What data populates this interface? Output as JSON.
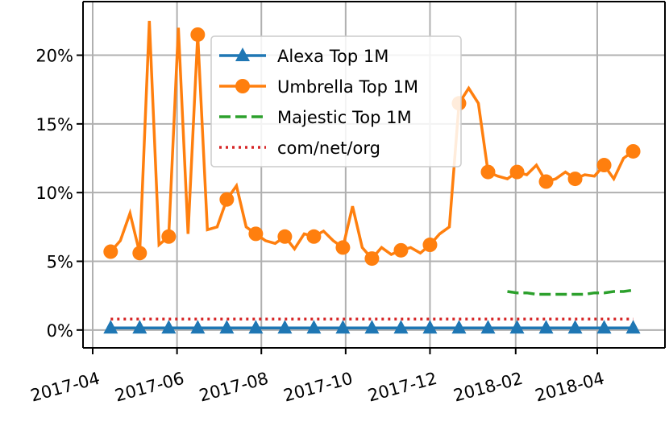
{
  "chart_data": {
    "type": "line",
    "x": [
      "2017-04-14",
      "2017-04-21",
      "2017-04-28",
      "2017-05-05",
      "2017-05-12",
      "2017-05-19",
      "2017-05-26",
      "2017-06-02",
      "2017-06-09",
      "2017-06-16",
      "2017-06-23",
      "2017-06-30",
      "2017-07-07",
      "2017-07-14",
      "2017-07-21",
      "2017-07-28",
      "2017-08-04",
      "2017-08-11",
      "2017-08-18",
      "2017-08-25",
      "2017-09-01",
      "2017-09-08",
      "2017-09-15",
      "2017-09-22",
      "2017-09-29",
      "2017-10-06",
      "2017-10-13",
      "2017-10-20",
      "2017-10-27",
      "2017-11-03",
      "2017-11-10",
      "2017-11-17",
      "2017-11-24",
      "2017-12-01",
      "2017-12-08",
      "2017-12-15",
      "2017-12-22",
      "2017-12-29",
      "2018-01-05",
      "2018-01-12",
      "2018-01-19",
      "2018-01-26",
      "2018-02-02",
      "2018-02-09",
      "2018-02-16",
      "2018-02-23",
      "2018-03-02",
      "2018-03-09",
      "2018-03-16",
      "2018-03-23",
      "2018-03-30",
      "2018-04-06",
      "2018-04-13",
      "2018-04-20",
      "2018-04-27"
    ],
    "series": [
      {
        "name": "Alexa Top 1M",
        "color": "#1f77b4",
        "linestyle": "solid",
        "marker": "triangle",
        "values": [
          0.15,
          0.15,
          0.15,
          0.15,
          0.15,
          0.15,
          0.15,
          0.15,
          0.15,
          0.15,
          0.15,
          0.15,
          0.15,
          0.15,
          0.15,
          0.15,
          0.15,
          0.15,
          0.15,
          0.15,
          0.15,
          0.15,
          0.15,
          0.15,
          0.15,
          0.15,
          0.15,
          0.15,
          0.15,
          0.15,
          0.15,
          0.15,
          0.15,
          0.15,
          0.15,
          0.15,
          0.15,
          0.15,
          0.15,
          0.15,
          0.15,
          0.15,
          0.15,
          0.15,
          0.15,
          0.15,
          0.15,
          0.15,
          0.15,
          0.15,
          0.15,
          0.15,
          0.15,
          0.15,
          0.15
        ]
      },
      {
        "name": "Umbrella Top 1M",
        "color": "#ff7f0e",
        "linestyle": "solid",
        "marker": "circle",
        "values": [
          5.7,
          6.5,
          8.5,
          5.6,
          22.5,
          6.2,
          6.8,
          22.0,
          7.0,
          21.5,
          7.3,
          7.5,
          9.5,
          10.5,
          7.5,
          7.0,
          6.5,
          6.3,
          6.8,
          5.9,
          7.0,
          6.8,
          7.2,
          6.5,
          6.0,
          9.0,
          6.0,
          5.2,
          6.0,
          5.5,
          5.8,
          6.0,
          5.6,
          6.2,
          7.0,
          7.5,
          16.5,
          17.6,
          16.5,
          11.5,
          11.2,
          11.0,
          11.5,
          11.3,
          12.0,
          10.8,
          11.0,
          11.5,
          11.0,
          11.3,
          11.2,
          12.0,
          11.0,
          12.5,
          13.0
        ]
      },
      {
        "name": "Majestic Top 1M",
        "color": "#2ca02c",
        "linestyle": "dashed",
        "values": [
          null,
          null,
          null,
          null,
          null,
          null,
          null,
          null,
          null,
          null,
          null,
          null,
          null,
          null,
          null,
          null,
          null,
          null,
          null,
          null,
          null,
          null,
          null,
          null,
          null,
          null,
          null,
          null,
          null,
          null,
          null,
          null,
          null,
          null,
          null,
          null,
          null,
          null,
          null,
          null,
          null,
          2.8,
          2.7,
          2.7,
          2.6,
          2.6,
          2.6,
          2.6,
          2.6,
          2.6,
          2.7,
          2.7,
          2.8,
          2.8,
          2.9
        ]
      },
      {
        "name": "com/net/org",
        "color": "#d62728",
        "linestyle": "dotted",
        "values": [
          0.8,
          0.8,
          0.8,
          0.8,
          0.8,
          0.8,
          0.8,
          0.8,
          0.8,
          0.8,
          0.8,
          0.8,
          0.8,
          0.8,
          0.8,
          0.8,
          0.8,
          0.8,
          0.8,
          0.8,
          0.8,
          0.8,
          0.8,
          0.8,
          0.8,
          0.8,
          0.8,
          0.8,
          0.8,
          0.8,
          0.8,
          0.8,
          0.8,
          0.8,
          0.8,
          0.8,
          0.8,
          0.8,
          0.8,
          0.8,
          0.8,
          0.8,
          0.8,
          0.8,
          0.8,
          0.8,
          0.8,
          0.8,
          0.8,
          0.8,
          0.8,
          0.8,
          0.8,
          0.8,
          0.8
        ]
      }
    ],
    "xlim": [
      "2017-03-25",
      "2018-05-20"
    ],
    "xticks": [
      {
        "value": "2017-04-01",
        "label": "2017-04"
      },
      {
        "value": "2017-06-01",
        "label": "2017-06"
      },
      {
        "value": "2017-08-01",
        "label": "2017-08"
      },
      {
        "value": "2017-10-01",
        "label": "2017-10"
      },
      {
        "value": "2017-12-01",
        "label": "2017-12"
      },
      {
        "value": "2018-02-01",
        "label": "2018-02"
      },
      {
        "value": "2018-04-01",
        "label": "2018-04"
      }
    ],
    "ylim": [
      -1.3,
      23.9
    ],
    "yticks": [
      {
        "value": 0,
        "label": "0%"
      },
      {
        "value": 5,
        "label": "5%"
      },
      {
        "value": 10,
        "label": "10%"
      },
      {
        "value": 15,
        "label": "15%"
      },
      {
        "value": 20,
        "label": "20%"
      }
    ],
    "grid": true,
    "legend": "upper center"
  }
}
